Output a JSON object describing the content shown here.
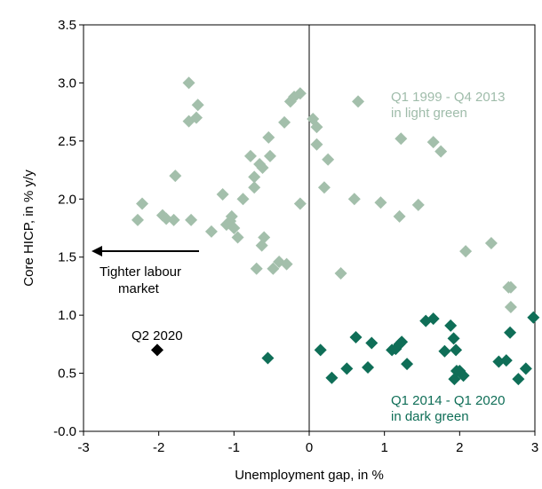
{
  "chart_data": {
    "type": "scatter",
    "xlabel": "Unemployment gap, in %",
    "ylabel": "Core HICP, in % y/y",
    "xlim": [
      -3,
      3
    ],
    "ylim": [
      0,
      3.5
    ],
    "x_ticks": [
      "-3",
      "-2",
      "-1",
      "0",
      "1",
      "2",
      "3"
    ],
    "y_ticks": [
      "-0.0",
      "0.5",
      "1.0",
      "1.5",
      "2.0",
      "2.5",
      "3.0",
      "3.5"
    ],
    "grid": false,
    "colors": {
      "light_green": "#a3bfab",
      "dark_green": "#0f6e57",
      "black": "#000000",
      "light_label": "#9fbcaa",
      "dark_label": "#0f6e57"
    },
    "annotations": {
      "light_line1": "Q1 1999 - Q4 2013",
      "light_line2": "in light green",
      "dark_line1": "Q1 2014 - Q1 2020",
      "dark_line2": "in dark green",
      "q2_label": "Q2 2020",
      "arrow_line1": "Tighter labour",
      "arrow_line2": "market"
    },
    "series": [
      {
        "period": "Q1 1999 - Q4 2013",
        "color": "light_green",
        "points": [
          [
            -1.6,
            3.0
          ],
          [
            -1.6,
            2.67
          ],
          [
            -1.5,
            2.7
          ],
          [
            -1.48,
            2.81
          ],
          [
            -1.78,
            2.2
          ],
          [
            -2.28,
            1.82
          ],
          [
            -2.22,
            1.96
          ],
          [
            -1.95,
            1.86
          ],
          [
            -1.9,
            1.83
          ],
          [
            -1.8,
            1.82
          ],
          [
            -1.57,
            1.82
          ],
          [
            -1.3,
            1.72
          ],
          [
            -1.15,
            2.04
          ],
          [
            -1.1,
            1.78
          ],
          [
            -1.05,
            1.81
          ],
          [
            -1.03,
            1.85
          ],
          [
            -1.0,
            1.75
          ],
          [
            -0.95,
            1.67
          ],
          [
            -0.88,
            2.0
          ],
          [
            -0.78,
            2.37
          ],
          [
            -0.73,
            2.19
          ],
          [
            -0.73,
            2.1
          ],
          [
            -0.7,
            1.4
          ],
          [
            -0.66,
            2.3
          ],
          [
            -0.62,
            2.27
          ],
          [
            -0.63,
            1.6
          ],
          [
            -0.6,
            1.67
          ],
          [
            -0.54,
            2.53
          ],
          [
            -0.52,
            2.37
          ],
          [
            -0.48,
            1.4
          ],
          [
            -0.4,
            1.46
          ],
          [
            -0.33,
            2.66
          ],
          [
            -0.3,
            1.44
          ],
          [
            -0.25,
            2.84
          ],
          [
            -0.2,
            2.88
          ],
          [
            -0.12,
            2.91
          ],
          [
            -0.12,
            1.96
          ],
          [
            0.05,
            2.69
          ],
          [
            0.1,
            2.62
          ],
          [
            0.1,
            2.47
          ],
          [
            0.2,
            2.1
          ],
          [
            0.25,
            2.34
          ],
          [
            0.42,
            1.36
          ],
          [
            0.6,
            2.0
          ],
          [
            0.65,
            2.84
          ],
          [
            0.95,
            1.97
          ],
          [
            1.2,
            1.85
          ],
          [
            1.22,
            2.52
          ],
          [
            1.45,
            1.95
          ],
          [
            1.65,
            2.49
          ],
          [
            1.75,
            2.41
          ],
          [
            2.08,
            1.55
          ],
          [
            2.42,
            1.62
          ],
          [
            2.65,
            1.24
          ],
          [
            2.68,
            1.24
          ],
          [
            2.68,
            1.07
          ]
        ]
      },
      {
        "period": "Q1 2014 - Q1 2020",
        "color": "dark_green",
        "points": [
          [
            -0.55,
            0.63
          ],
          [
            0.15,
            0.7
          ],
          [
            0.3,
            0.46
          ],
          [
            0.5,
            0.54
          ],
          [
            0.62,
            0.81
          ],
          [
            0.78,
            0.55
          ],
          [
            0.83,
            0.76
          ],
          [
            1.1,
            0.7
          ],
          [
            1.15,
            0.71
          ],
          [
            1.2,
            0.75
          ],
          [
            1.23,
            0.77
          ],
          [
            1.3,
            0.58
          ],
          [
            1.55,
            0.95
          ],
          [
            1.65,
            0.97
          ],
          [
            1.8,
            0.69
          ],
          [
            1.88,
            0.91
          ],
          [
            1.92,
            0.8
          ],
          [
            1.95,
            0.7
          ],
          [
            1.93,
            0.45
          ],
          [
            1.96,
            0.52
          ],
          [
            2.0,
            0.52
          ],
          [
            2.05,
            0.48
          ],
          [
            2.52,
            0.6
          ],
          [
            2.62,
            0.61
          ],
          [
            2.67,
            0.85
          ],
          [
            2.78,
            0.45
          ],
          [
            2.88,
            0.54
          ],
          [
            2.98,
            0.98
          ]
        ]
      },
      {
        "period": "Q2 2020",
        "color": "black",
        "points": [
          [
            -2.02,
            0.7
          ]
        ]
      }
    ]
  }
}
